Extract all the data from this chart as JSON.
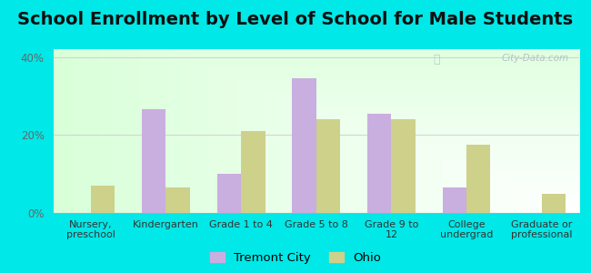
{
  "title": "School Enrollment by Level of School for Male Students",
  "categories": [
    "Nursery,\npreschool",
    "Kindergarten",
    "Grade 1 to 4",
    "Grade 5 to 8",
    "Grade 9 to\n12",
    "College\nundergrad",
    "Graduate or\nprofessional"
  ],
  "tremont_values": [
    0.0,
    26.5,
    10.0,
    34.5,
    25.5,
    6.5,
    0.0
  ],
  "ohio_values": [
    7.0,
    6.5,
    21.0,
    24.0,
    24.0,
    17.5,
    5.0
  ],
  "tremont_color": "#c9aee0",
  "ohio_color": "#cdd18a",
  "background_color": "#00e8e8",
  "plot_bg_left": "#d6edd6",
  "plot_bg_right": "#f0f8f0",
  "ylim": [
    0,
    42
  ],
  "yticks": [
    0,
    20,
    40
  ],
  "ytick_labels": [
    "0%",
    "20%",
    "40%"
  ],
  "legend_labels": [
    "Tremont City",
    "Ohio"
  ],
  "watermark": "City-Data.com",
  "title_fontsize": 14,
  "label_fontsize": 8,
  "tick_fontsize": 8.5,
  "bar_width": 0.32
}
